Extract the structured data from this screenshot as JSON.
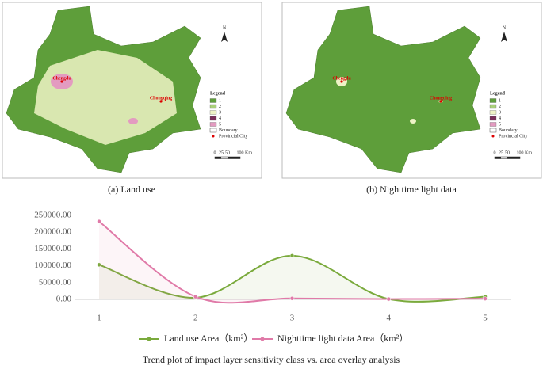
{
  "maps": [
    {
      "caption": "(a) Land use",
      "north": "N",
      "legend_title": "Legend",
      "legend": [
        "1",
        "2",
        "3",
        "4",
        "5",
        "Boundary",
        "Provincial City"
      ],
      "legend_colors": [
        "#5e9e3a",
        "#a9cf7a",
        "#eef3c6",
        "#7a2f5a",
        "#e39bc0"
      ],
      "cities": [
        "Chengdu",
        "Chongqing"
      ],
      "scale": [
        "0",
        "25",
        "50",
        "100",
        "Km"
      ]
    },
    {
      "caption": "(b) Nighttime light data",
      "north": "N",
      "legend_title": "Legend",
      "legend": [
        "1",
        "2",
        "3",
        "4",
        "5",
        "Boundary",
        "Provincial City"
      ],
      "legend_colors": [
        "#5e9e3a",
        "#a9cf7a",
        "#eef3c6",
        "#7a2f5a",
        "#e39bc0"
      ],
      "cities": [
        "Chengdu",
        "Chongqing"
      ],
      "scale": [
        "0",
        "25",
        "50",
        "100",
        "Km"
      ]
    }
  ],
  "chart_data": {
    "type": "line",
    "title": "Trend plot of impact layer sensitivity class vs. area overlay analysis",
    "categories": [
      "1",
      "2",
      "3",
      "4",
      "5"
    ],
    "series": [
      {
        "name": "Land use Area（km²）",
        "color": "#7aaa3c",
        "values": [
          103000,
          5000,
          130000,
          1000,
          8000
        ]
      },
      {
        "name": "Nighttime light data Area（km²）",
        "color": "#e07aa8",
        "values": [
          232000,
          8000,
          3000,
          1000,
          2000
        ]
      }
    ],
    "ylim": [
      0,
      250000
    ],
    "yticks": [
      {
        "value": 0,
        "label": "0.00"
      },
      {
        "value": 50000,
        "label": "50000.00"
      },
      {
        "value": 100000,
        "label": "100000.00"
      },
      {
        "value": 150000,
        "label": "150000.00"
      },
      {
        "value": 200000,
        "label": "200000.00"
      },
      {
        "value": 250000,
        "label": "250000.00"
      }
    ],
    "grid": false,
    "legend": "bottom"
  }
}
